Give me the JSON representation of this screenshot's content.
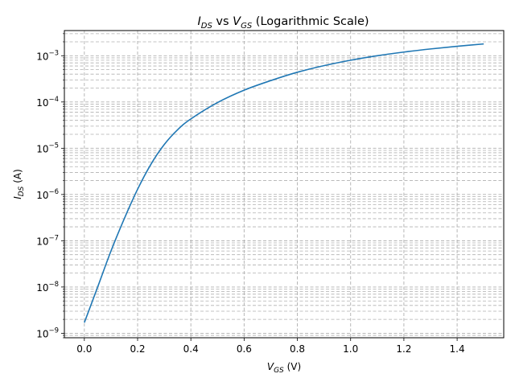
{
  "chart_data": {
    "type": "line",
    "title": {
      "main_a": "I",
      "sub_a": "DS",
      "mid": " vs ",
      "main_b": "V",
      "sub_b": "GS",
      "tail": " (Logarithmic Scale)"
    },
    "xlabel": {
      "main": "V",
      "sub": "GS",
      "tail": " (V)"
    },
    "ylabel": {
      "main": "I",
      "sub": "DS",
      "tail": " (A)"
    },
    "xlim": [
      -0.075,
      1.575
    ],
    "ylim": [
      8e-10,
      0.0035
    ],
    "yscale": "log",
    "grid": "on (major and minor, dashed)",
    "x_ticks": [
      0.0,
      0.2,
      0.4,
      0.6,
      0.8,
      1.0,
      1.2,
      1.4
    ],
    "x_tick_labels": [
      "0.0",
      "0.2",
      "0.4",
      "0.6",
      "0.8",
      "1.0",
      "1.2",
      "1.4"
    ],
    "y_ticks": [
      {
        "value": 1e-09,
        "base": "10",
        "exp": "−9"
      },
      {
        "value": 1e-08,
        "base": "10",
        "exp": "−8"
      },
      {
        "value": 1e-07,
        "base": "10",
        "exp": "−7"
      },
      {
        "value": 1e-06,
        "base": "10",
        "exp": "−6"
      },
      {
        "value": 1e-05,
        "base": "10",
        "exp": "−5"
      },
      {
        "value": 0.0001,
        "base": "10",
        "exp": "−4"
      },
      {
        "value": 0.001,
        "base": "10",
        "exp": "−3"
      }
    ],
    "line_color": "#1f77b4",
    "series": [
      {
        "x": [
          0.0,
          0.05,
          0.1,
          0.15,
          0.2,
          0.25,
          0.3,
          0.35,
          0.4,
          0.5,
          0.6,
          0.7,
          0.8,
          0.9,
          1.0,
          1.1,
          1.2,
          1.3,
          1.4,
          1.5
        ],
        "y": [
          1.7e-09,
          1e-08,
          6e-08,
          3e-07,
          1.3e-06,
          4.5e-06,
          1.2e-05,
          2.5e-05,
          4.3e-05,
          9.7e-05,
          0.00018,
          0.00029,
          0.00044,
          0.00061,
          0.0008,
          0.001,
          0.0012,
          0.0014,
          0.0016,
          0.0018
        ]
      }
    ]
  }
}
